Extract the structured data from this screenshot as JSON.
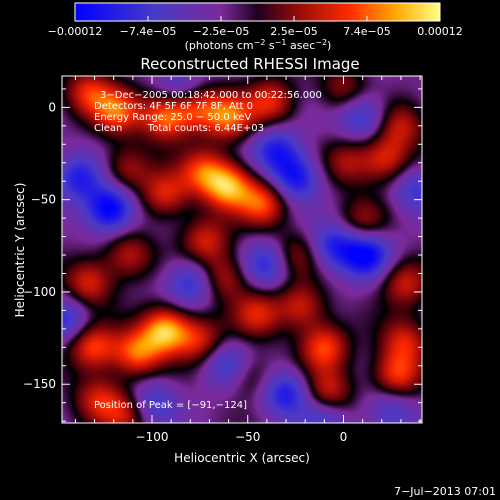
{
  "chart_data": {
    "type": "heatmap",
    "title": "Reconstructed RHESSI Image",
    "xlabel": "Heliocentric X (arcsec)",
    "ylabel": "Heliocentric Y (arcsec)",
    "xlim": [
      -147,
      41
    ],
    "ylim": [
      -171,
      17
    ],
    "x_ticks": [
      -100,
      -50,
      0
    ],
    "x_tick_labels": [
      "−100",
      "−50",
      "0"
    ],
    "y_ticks": [
      0,
      -50,
      -100,
      -150
    ],
    "y_tick_labels": [
      "0",
      "−50",
      "−100",
      "−150"
    ],
    "colorbar": {
      "min": -0.00012,
      "max": 0.00012,
      "tick_labels": [
        "−0.00012",
        "−7.4e−05",
        "−2.5e−05",
        "2.5e−05",
        "7.4e−05",
        "0.00012"
      ],
      "unit_main": "(photons cm",
      "unit_exp1": "−2",
      "unit_s": " s",
      "unit_exp2": "−1",
      "unit_asec": " asec",
      "unit_exp3": "−2",
      "unit_close": ")"
    },
    "annotations": {
      "time_range": "3−Dec−2005 00:18:42.000 to 00:22:56.000",
      "detectors": "Detectors: 4F 5F 6F 7F 8F, Att 0",
      "energy": "Energy Range: 25.0 − 50.0 keV",
      "clean": "Clean        Total counts: 6.44E+03",
      "peak": "Position of Peak = [−91,−124]"
    },
    "peak_position": [
      -91,
      -124
    ],
    "blobs": [
      {
        "x": -93,
        "y": -121,
        "v": 1.0
      },
      {
        "x": -108,
        "y": -133,
        "v": 0.75
      },
      {
        "x": -131,
        "y": -130,
        "v": 0.7
      },
      {
        "x": -75,
        "y": -126,
        "v": 0.55
      },
      {
        "x": -60,
        "y": -43,
        "v": 0.9
      },
      {
        "x": -42,
        "y": -52,
        "v": 0.7
      },
      {
        "x": -73,
        "y": -35,
        "v": 0.65
      },
      {
        "x": -60,
        "y": -5,
        "v": 0.75
      },
      {
        "x": -38,
        "y": 3,
        "v": 0.6
      },
      {
        "x": -93,
        "y": -5,
        "v": 0.8
      },
      {
        "x": -77,
        "y": 0,
        "v": 0.6
      },
      {
        "x": -118,
        "y": -2,
        "v": 0.7
      },
      {
        "x": -133,
        "y": 8,
        "v": 0.6
      },
      {
        "x": -93,
        "y": -47,
        "v": 0.6
      },
      {
        "x": -113,
        "y": -33,
        "v": 0.45
      },
      {
        "x": -72,
        "y": -72,
        "v": 0.55
      },
      {
        "x": -62,
        "y": -92,
        "v": 0.5
      },
      {
        "x": -112,
        "y": -80,
        "v": 0.5
      },
      {
        "x": -133,
        "y": -95,
        "v": 0.6
      },
      {
        "x": -128,
        "y": -158,
        "v": 0.55
      },
      {
        "x": -113,
        "y": -166,
        "v": 0.5
      },
      {
        "x": -45,
        "y": -112,
        "v": 0.55
      },
      {
        "x": -22,
        "y": -108,
        "v": 0.55
      },
      {
        "x": -10,
        "y": -130,
        "v": 0.7
      },
      {
        "x": -8,
        "y": -155,
        "v": 0.6
      },
      {
        "x": 28,
        "y": -145,
        "v": 0.7
      },
      {
        "x": 32,
        "y": -127,
        "v": 0.55
      },
      {
        "x": 32,
        "y": -95,
        "v": 0.55
      },
      {
        "x": 22,
        "y": -28,
        "v": 0.6
      },
      {
        "x": 2,
        "y": -30,
        "v": 0.45
      },
      {
        "x": 10,
        "y": -62,
        "v": 0.4
      },
      {
        "x": 30,
        "y": -10,
        "v": 0.5
      },
      {
        "x": -50,
        "y": -145,
        "v": 0.4
      },
      {
        "x": -25,
        "y": -80,
        "v": 0.4
      },
      {
        "x": 0,
        "y": 10,
        "v": 0.4
      },
      {
        "x": -122,
        "y": -55,
        "v": -0.9
      },
      {
        "x": -138,
        "y": -38,
        "v": -0.6
      },
      {
        "x": -25,
        "y": -38,
        "v": -0.7
      },
      {
        "x": -35,
        "y": -23,
        "v": -0.6
      },
      {
        "x": 10,
        "y": -5,
        "v": -0.55
      },
      {
        "x": 12,
        "y": -80,
        "v": -0.8
      },
      {
        "x": -5,
        "y": -75,
        "v": -0.6
      },
      {
        "x": -40,
        "y": -85,
        "v": -0.55
      },
      {
        "x": -30,
        "y": -155,
        "v": -0.65
      },
      {
        "x": -60,
        "y": -140,
        "v": -0.55
      },
      {
        "x": -80,
        "y": -95,
        "v": -0.55
      },
      {
        "x": -100,
        "y": -160,
        "v": -0.5
      },
      {
        "x": 25,
        "y": -165,
        "v": -0.45
      },
      {
        "x": -145,
        "y": -115,
        "v": -0.5
      },
      {
        "x": -85,
        "y": 12,
        "v": -0.4
      },
      {
        "x": -10,
        "y": -168,
        "v": -0.45
      },
      {
        "x": 38,
        "y": -45,
        "v": -0.45
      }
    ]
  },
  "footer": {
    "timestamp": "7−Jul−2013 07:01"
  },
  "colors": {
    "background": "#000000",
    "axis": "#ffffff",
    "text": "#ffffff"
  }
}
